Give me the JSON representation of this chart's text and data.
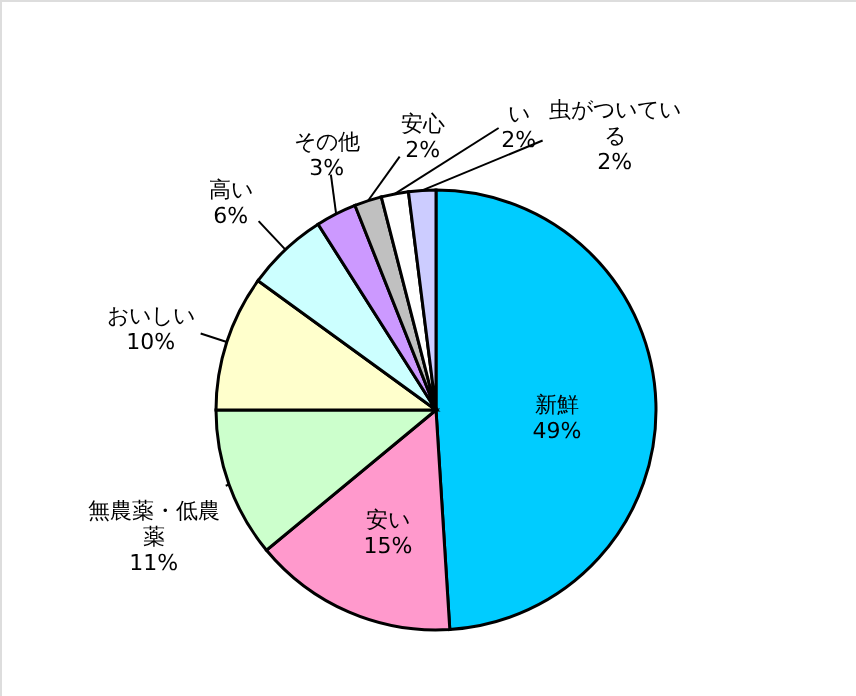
{
  "chart_data": {
    "type": "pie",
    "categories": [
      "新鮮",
      "安い",
      "無農薬・低農薬",
      "おいしい",
      "高い",
      "その他",
      "安心",
      "い",
      "虫がついている"
    ],
    "values": [
      49,
      15,
      11,
      10,
      6,
      3,
      2,
      2,
      2
    ],
    "value_labels": [
      "49%",
      "15%",
      "11%",
      "10%",
      "6%",
      "3%",
      "2%",
      "2%",
      "2%"
    ],
    "colors": [
      "#00ccff",
      "#ff99cc",
      "#ccffcc",
      "#ffffcc",
      "#ccffff",
      "#cc99ff",
      "#c0c0c0",
      "#ffffff",
      "#ccccff"
    ]
  }
}
